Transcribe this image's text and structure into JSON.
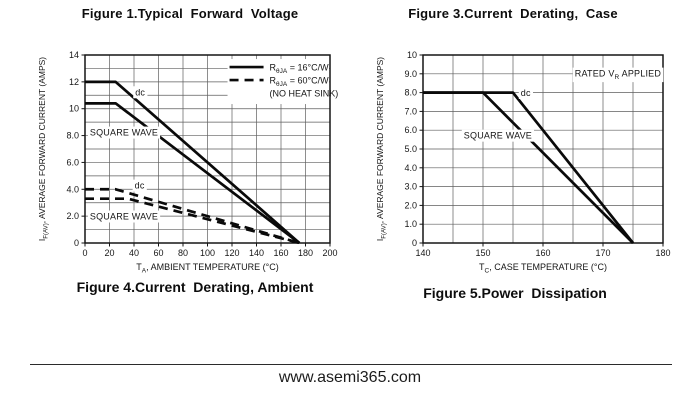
{
  "page": {
    "left_title": "Figure 1.Typical  Forward  Voltage",
    "right_title": "Figure 3.Current  Derating,  Case",
    "left_caption": "Figure 4.Current  Derating, Ambient",
    "right_caption": "Figure 5.Power  Dissipation",
    "footer_url": "www.asemi365.com"
  },
  "chart_data": [
    {
      "type": "line",
      "title": "Figure 4. Current Derating, Ambient",
      "xlabel_parts": [
        [
          "T"
        ],
        [
          "A",
          "sub"
        ],
        [
          ", AMBIENT TEMPERATURE (°C)"
        ]
      ],
      "ylabel_parts": [
        [
          "I"
        ],
        [
          "F(AV)",
          "sub"
        ],
        [
          ", AVERAGE FORWARD CURRENT (AMPS)"
        ]
      ],
      "xlim": [
        0,
        200
      ],
      "ylim": [
        0,
        14
      ],
      "grid": "on",
      "x_ticks": [
        {
          "v": 0,
          "label": "0"
        },
        {
          "v": 20,
          "label": "20"
        },
        {
          "v": 40,
          "label": "40"
        },
        {
          "v": 60,
          "label": "60"
        },
        {
          "v": 80,
          "label": "80"
        },
        {
          "v": 100,
          "label": "100"
        },
        {
          "v": 120,
          "label": "120"
        },
        {
          "v": 140,
          "label": "140"
        },
        {
          "v": 160,
          "label": "160"
        },
        {
          "v": 180,
          "label": "180"
        },
        {
          "v": 200,
          "label": "200"
        }
      ],
      "y_ticks": [
        {
          "v": 0,
          "label": "0"
        },
        {
          "v": 2,
          "label": "2.0"
        },
        {
          "v": 4,
          "label": "4.0"
        },
        {
          "v": 6,
          "label": "6.0"
        },
        {
          "v": 8,
          "label": "8.0"
        },
        {
          "v": 10,
          "label": "10"
        },
        {
          "v": 12,
          "label": "12"
        },
        {
          "v": 14,
          "label": "14"
        }
      ],
      "x_grid": [
        20,
        40,
        60,
        80,
        100,
        120,
        140,
        160,
        180
      ],
      "y_grid": [
        1,
        2,
        3,
        4,
        5,
        6,
        7,
        8,
        9,
        10,
        11,
        12,
        13
      ],
      "series": [
        {
          "label": "dc",
          "legend_ref": "RθJA = 16°C/W",
          "style": "solid",
          "points": [
            [
              0,
              12
            ],
            [
              25,
              12
            ],
            [
              175,
              0
            ]
          ]
        },
        {
          "label": "SQUARE WAVE",
          "legend_ref": "RθJA = 16°C/W",
          "style": "solid",
          "points": [
            [
              0,
              10.4
            ],
            [
              25,
              10.4
            ],
            [
              175,
              0
            ]
          ]
        },
        {
          "label": "dc",
          "legend_ref": "RθJA = 60°C/W (NO HEAT SINK)",
          "style": "dashed",
          "points": [
            [
              0,
              4
            ],
            [
              25,
              4
            ],
            [
              175,
              0
            ]
          ]
        },
        {
          "label": "SQUARE WAVE",
          "legend_ref": "RθJA = 60°C/W (NO HEAT SINK)",
          "style": "dashed",
          "points": [
            [
              0,
              3.3
            ],
            [
              35,
              3.3
            ],
            [
              175,
              0
            ]
          ]
        }
      ],
      "annotations": [
        {
          "parts": [
            [
              "dc"
            ]
          ],
          "x": 41,
          "y": 11.0
        },
        {
          "parts": [
            [
              "SQUARE WAVE"
            ]
          ],
          "x": 4,
          "y": 8.0
        },
        {
          "parts": [
            [
              "dc"
            ]
          ],
          "x": 40.5,
          "y": 4.05
        },
        {
          "parts": [
            [
              "SQUARE WAVE"
            ]
          ],
          "x": 4,
          "y": 1.75
        }
      ],
      "legend": {
        "position": "top-right-inside",
        "x": 118,
        "y": 13.55,
        "rows": [
          {
            "style": "solid",
            "parts": [
              [
                "R"
              ],
              [
                "θJA",
                "sub"
              ],
              [
                " = 16°C/W"
              ]
            ]
          },
          {
            "style": "dashed",
            "parts": [
              [
                "R"
              ],
              [
                "θJA",
                "sub"
              ],
              [
                " = 60°C/W"
              ]
            ]
          },
          {
            "style": "none",
            "parts": [
              [
                "(NO HEAT SINK)"
              ]
            ]
          }
        ]
      }
    },
    {
      "type": "line",
      "title": "Figure 3. Current Derating, Case",
      "xlabel_parts": [
        [
          "T"
        ],
        [
          "C",
          "sub"
        ],
        [
          ", CASE TEMPERATURE (°C)"
        ]
      ],
      "ylabel_parts": [
        [
          "I"
        ],
        [
          "F(AV)",
          "sub"
        ],
        [
          ", AVERAGE FORWARD CURRENT (AMPS)"
        ]
      ],
      "xlim": [
        140,
        180
      ],
      "ylim": [
        0,
        10
      ],
      "grid": "on",
      "x_ticks": [
        {
          "v": 140,
          "label": "140"
        },
        {
          "v": 150,
          "label": "150"
        },
        {
          "v": 160,
          "label": "160"
        },
        {
          "v": 170,
          "label": "170"
        },
        {
          "v": 180,
          "label": "180"
        }
      ],
      "y_ticks": [
        {
          "v": 0,
          "label": "0"
        },
        {
          "v": 1,
          "label": "1.0"
        },
        {
          "v": 2,
          "label": "2.0"
        },
        {
          "v": 3,
          "label": "3.0"
        },
        {
          "v": 4,
          "label": "4.0"
        },
        {
          "v": 5,
          "label": "5.0"
        },
        {
          "v": 6,
          "label": "6.0"
        },
        {
          "v": 7,
          "label": "7.0"
        },
        {
          "v": 8,
          "label": "8.0"
        },
        {
          "v": 9,
          "label": "9.0"
        },
        {
          "v": 10,
          "label": "10"
        }
      ],
      "x_grid": [
        145,
        150,
        155,
        160,
        165,
        170,
        175
      ],
      "y_grid": [
        1,
        2,
        3,
        4,
        5,
        6,
        7,
        8,
        9
      ],
      "series": [
        {
          "label": "dc",
          "legend_ref": "RATED VR APPLIED",
          "style": "solid",
          "points": [
            [
              140,
              8
            ],
            [
              155,
              8
            ],
            [
              175,
              0
            ]
          ]
        },
        {
          "label": "SQUARE WAVE",
          "legend_ref": "RATED VR APPLIED",
          "style": "solid",
          "points": [
            [
              140,
              8
            ],
            [
              150,
              8
            ],
            [
              175,
              0
            ]
          ]
        }
      ],
      "annotations": [
        {
          "parts": [
            [
              "dc"
            ]
          ],
          "x": 156.3,
          "y": 7.82
        },
        {
          "parts": [
            [
              "SQUARE WAVE"
            ]
          ],
          "x": 146.8,
          "y": 5.55
        },
        {
          "parts": [
            [
              "RATED V"
            ],
            [
              "R",
              "sub"
            ],
            [
              " APPLIED"
            ]
          ],
          "x": 165.3,
          "y": 8.85
        }
      ],
      "legend": null
    }
  ]
}
